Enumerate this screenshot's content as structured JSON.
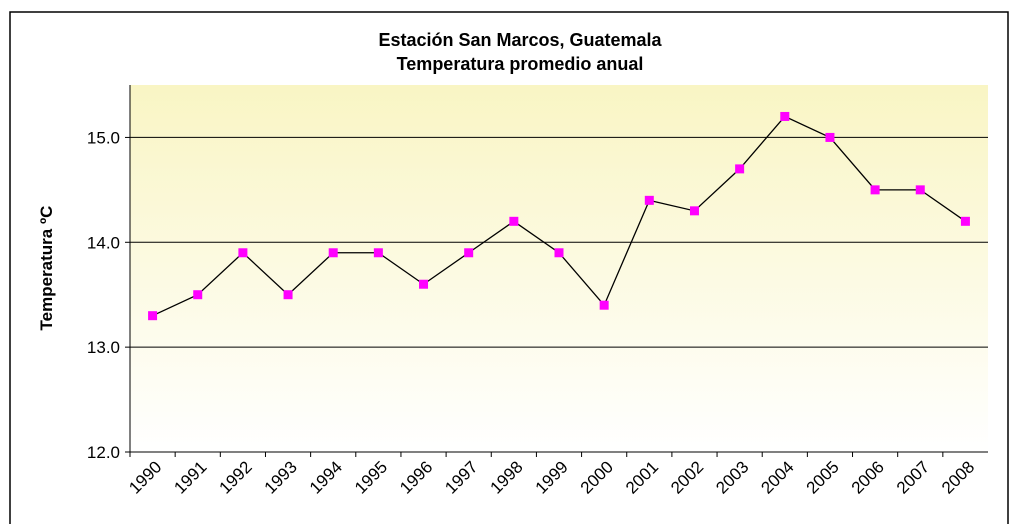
{
  "chart_data": {
    "type": "line",
    "title": "Estación San Marcos, Guatemala",
    "subtitle": "Temperatura promedio anual",
    "y_label": "Temperatura ºC",
    "categories": [
      "1990",
      "1991",
      "1992",
      "1993",
      "1994",
      "1995",
      "1996",
      "1997",
      "1998",
      "1999",
      "2000",
      "2001",
      "2002",
      "2003",
      "2004",
      "2005",
      "2006",
      "2007",
      "2008"
    ],
    "series": [
      {
        "name": "Temperatura",
        "color": "#ff00ff",
        "values": [
          13.3,
          13.5,
          13.9,
          13.5,
          13.9,
          13.9,
          13.6,
          13.9,
          14.2,
          13.9,
          13.4,
          14.4,
          14.3,
          14.7,
          15.2,
          15.0,
          14.5,
          14.5,
          14.2
        ]
      }
    ],
    "line_color": "#000000",
    "ylim": [
      12,
      15.5
    ],
    "yticks": [
      {
        "value": 12,
        "label": "12.0"
      },
      {
        "value": 13,
        "label": "13.0"
      },
      {
        "value": 14,
        "label": "14.0"
      },
      {
        "value": 15,
        "label": "15.0"
      }
    ],
    "grid": true
  }
}
